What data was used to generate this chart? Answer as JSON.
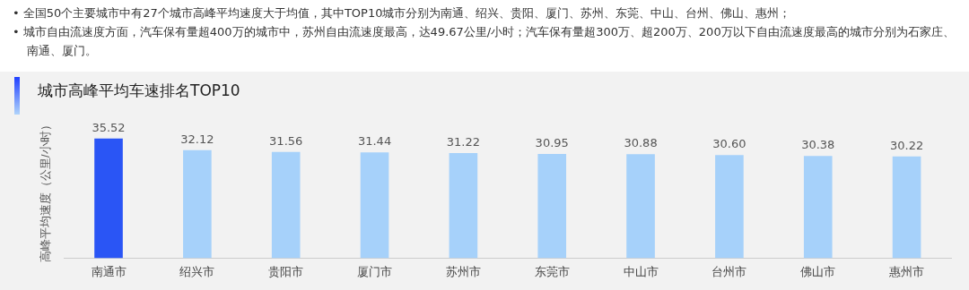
{
  "chart_data": {
    "type": "bar",
    "title": "城市高峰平均车速排名TOP10",
    "ylabel": "高峰平均速度（公里/小时）",
    "annotations": [
      "•  全国50个主要城市中有27个城市高峰平均速度大于均值，其中TOP10城市分别为南通、绍兴、贵阳、厦门、苏州、东莞、中山、台州、佛山、惠州；",
      "•  城市自由流速度方面，汽车保有量超400万的城市中，苏州自由流速度最高，达49.67公里/小时；汽车保有量超300万、超200万、200万以下自由流速度最高的城市分别为石家庄、南通、厦门。"
    ],
    "categories": [
      "南通市",
      "绍兴市",
      "贵阳市",
      "厦门市",
      "苏州市",
      "东莞市",
      "中山市",
      "台州市",
      "佛山市",
      "惠州市"
    ],
    "values": [
      35.52,
      32.12,
      31.56,
      31.44,
      31.22,
      30.95,
      30.88,
      30.6,
      30.38,
      30.22
    ],
    "value_labels": [
      "35.52",
      "32.12",
      "31.56",
      "31.44",
      "31.22",
      "30.95",
      "30.88",
      "30.60",
      "30.38",
      "30.22"
    ],
    "colors": [
      "#2a55f5",
      "#a6d1fa",
      "#a6d1fa",
      "#a6d1fa",
      "#a6d1fa",
      "#a6d1fa",
      "#a6d1fa",
      "#a6d1fa",
      "#a6d1fa",
      "#a6d1fa"
    ],
    "tick_labels": "x",
    "grid": false,
    "legend": false
  }
}
